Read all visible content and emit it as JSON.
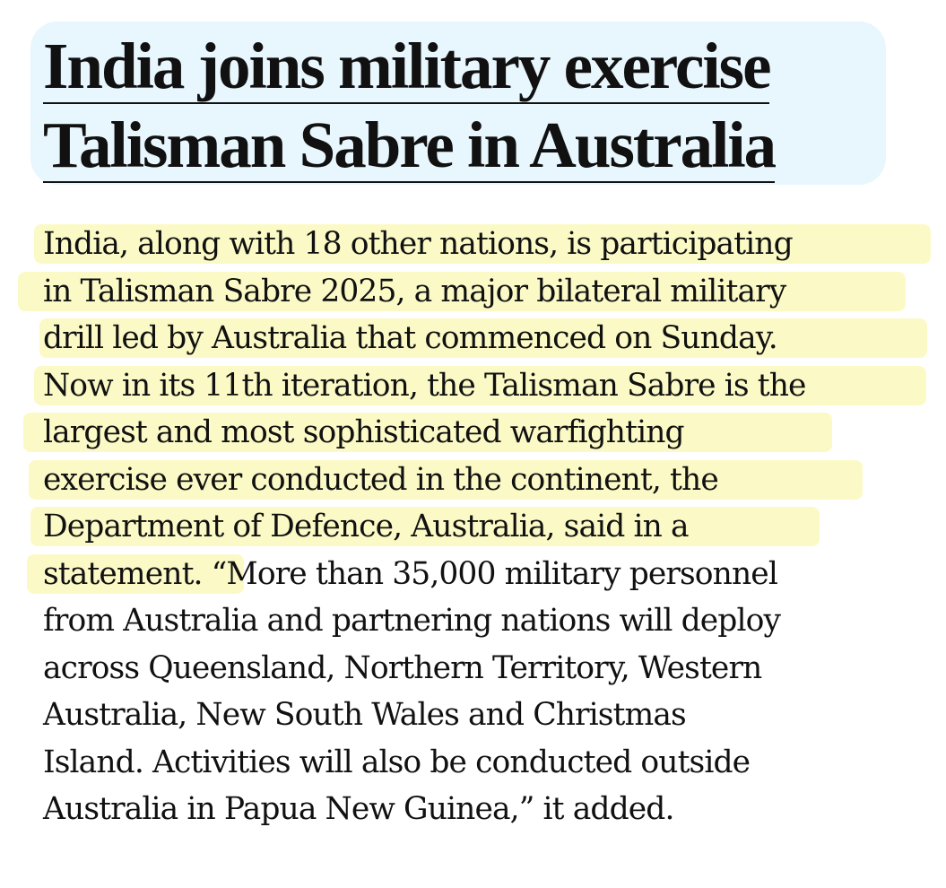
{
  "headline": {
    "line1": "India joins military exercise",
    "line2": "Talisman Sabre in Australia"
  },
  "colors": {
    "headline_background": "#e8f6fd",
    "highlight": "#fbfac6",
    "text": "#111111"
  },
  "body": {
    "lines": [
      "India, along with 18 other nations, is participating",
      "in Talisman Sabre 2025, a major bilateral military",
      "drill led by Australia that commenced on Sunday.",
      "Now in its 11th iteration, the Talisman Sabre is the",
      "largest and most sophisticated warfighting",
      "exercise ever conducted in the continent, the",
      "Department of Defence, Australia, said in a",
      "statement. “More than 35,000 military personnel",
      "from Australia and partnering nations will deploy",
      "across Queensland, Northern Territory, Western",
      "Australia, New South Wales and Christmas",
      "Island. Activities will also be conducted outside",
      "Australia in Papua New Guinea,” it added."
    ]
  }
}
